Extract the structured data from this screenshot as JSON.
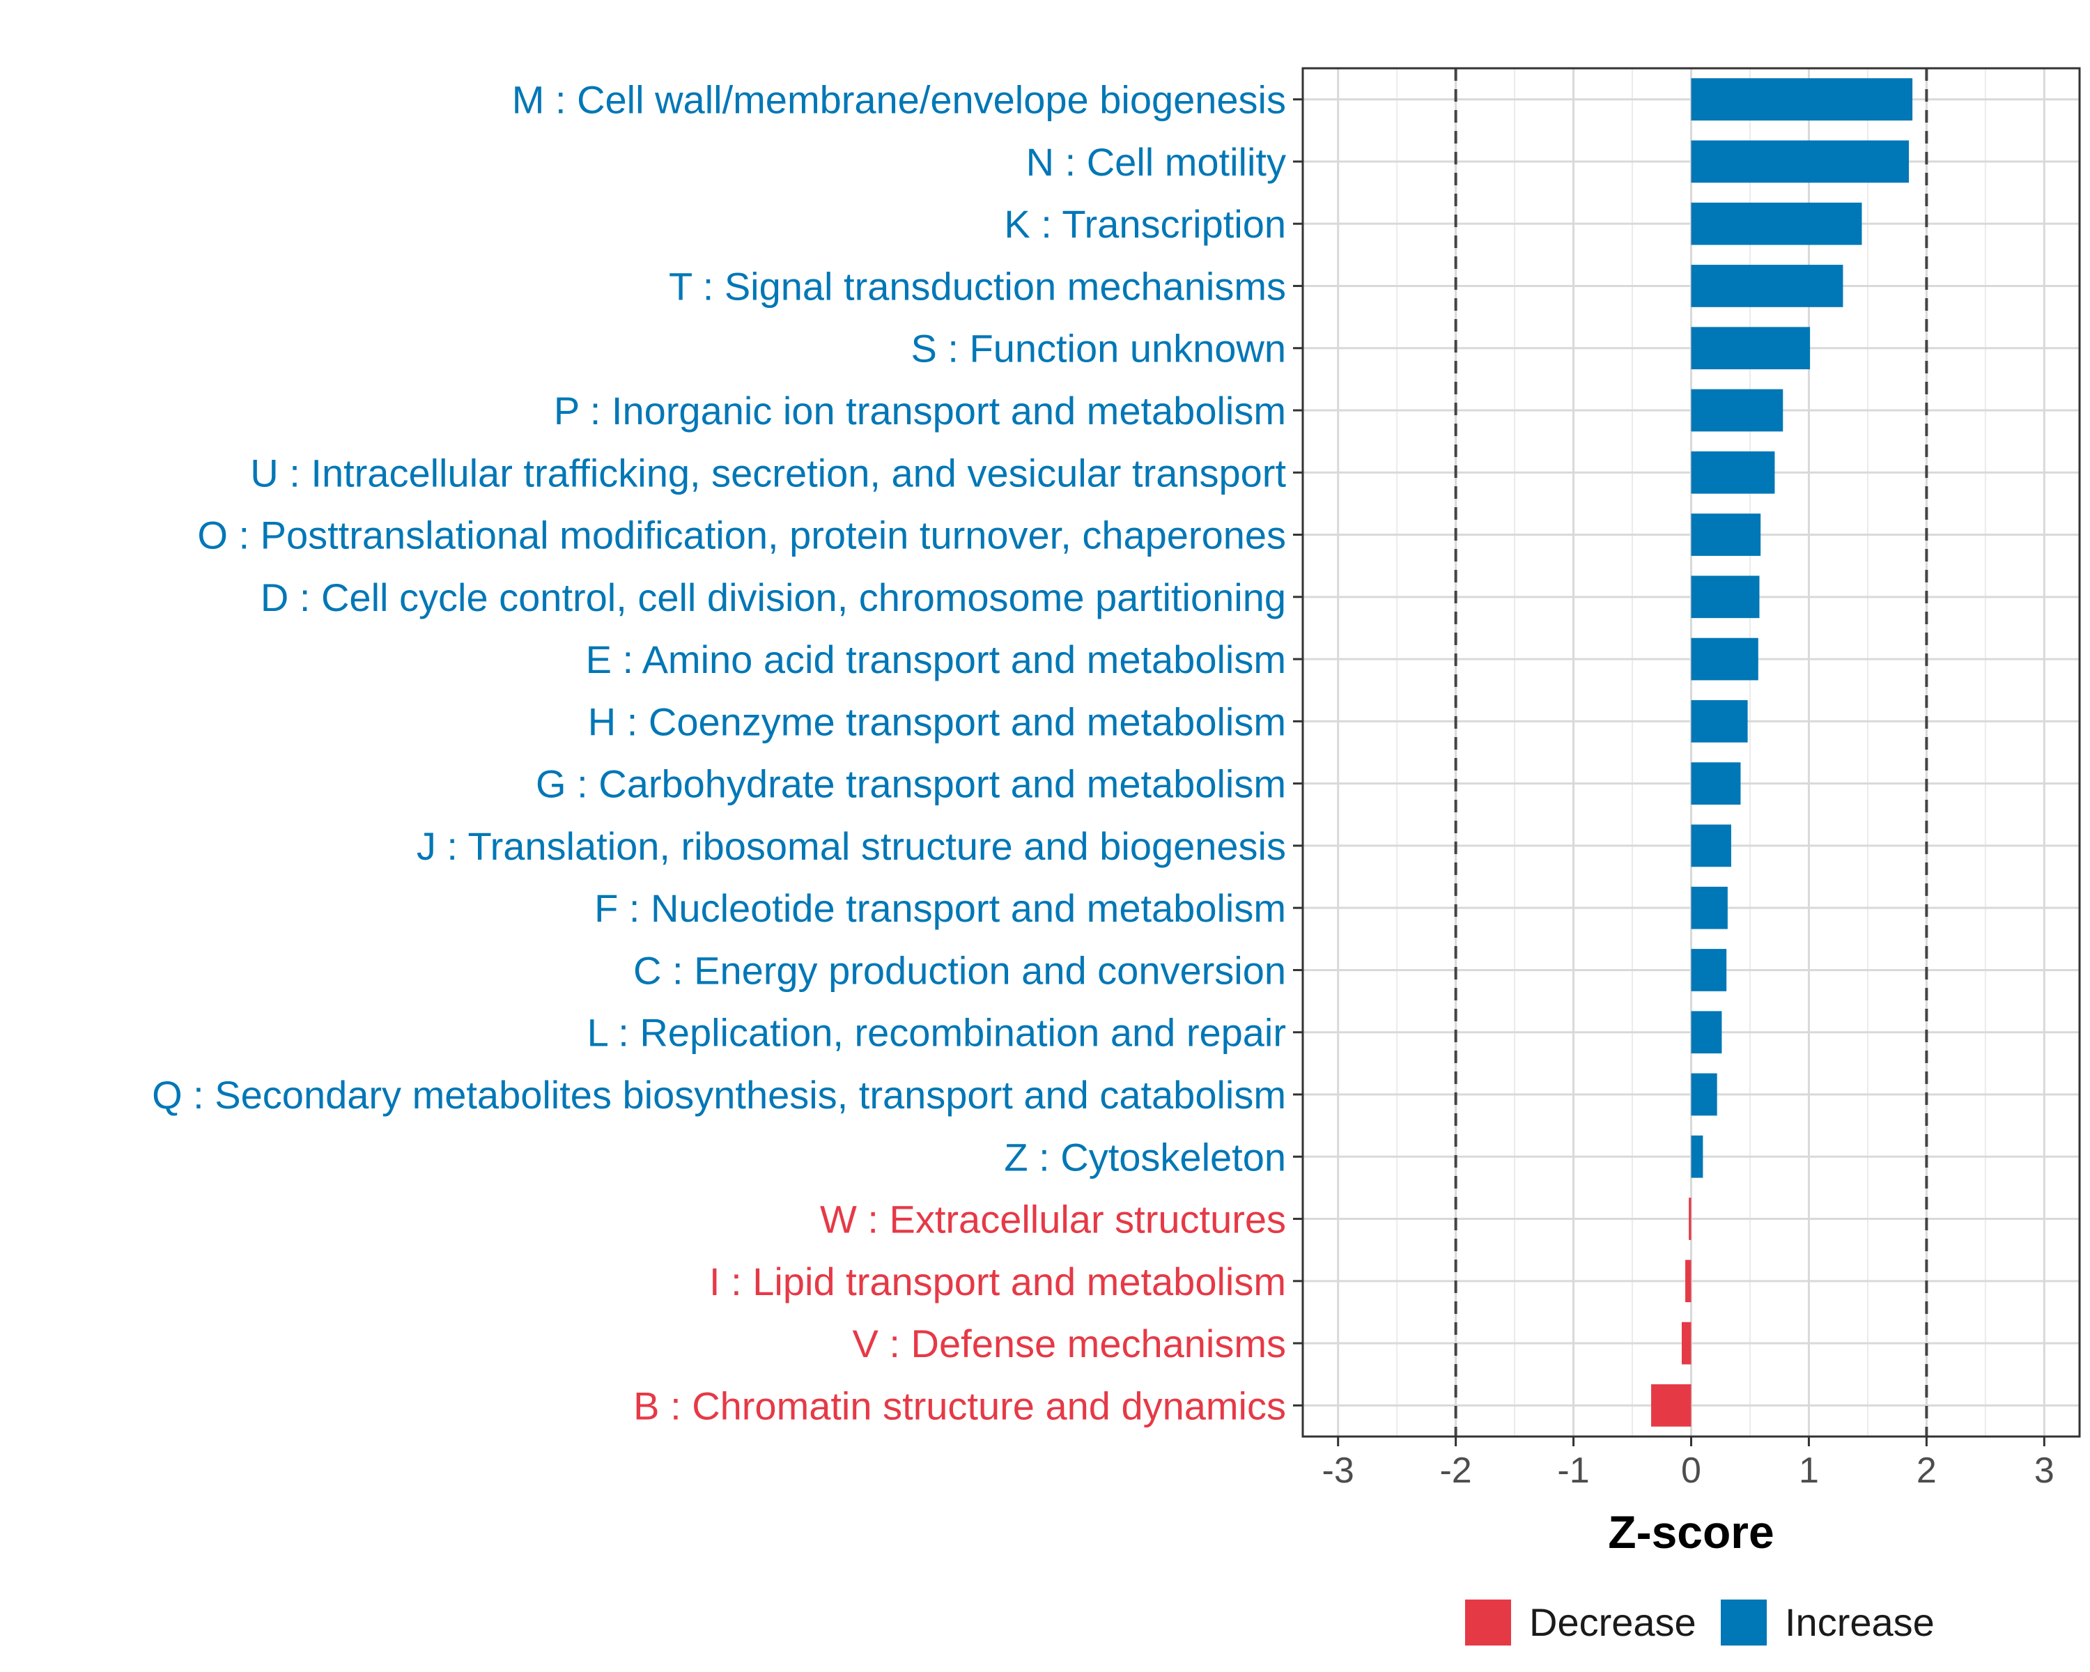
{
  "chart_data": {
    "type": "bar",
    "orientation": "horizontal",
    "title": "",
    "xlabel": "Z-score",
    "ylabel": "",
    "xlim": [
      -3.3,
      3.3
    ],
    "xticks": [
      -3,
      -2,
      -1,
      0,
      1,
      2,
      3
    ],
    "threshold_lines": [
      -2,
      2
    ],
    "grid": true,
    "legend_position": "bottom",
    "colors": {
      "Decrease": "#e63946",
      "Increase": "#0077b6"
    },
    "legend": [
      {
        "key": "Decrease",
        "label": "Decrease"
      },
      {
        "key": "Increase",
        "label": "Increase"
      }
    ],
    "categories": [
      "M : Cell wall/membrane/envelope biogenesis",
      "N : Cell motility",
      "K : Transcription",
      "T : Signal transduction mechanisms",
      "S : Function unknown",
      "P : Inorganic ion transport and metabolism",
      "U : Intracellular trafficking, secretion, and vesicular transport",
      "O : Posttranslational modification, protein turnover, chaperones",
      "D : Cell cycle control, cell division, chromosome partitioning",
      "E : Amino acid transport and metabolism",
      "H : Coenzyme transport and metabolism",
      "G : Carbohydrate transport and metabolism",
      "J : Translation, ribosomal structure and biogenesis",
      "F : Nucleotide transport and metabolism",
      "C : Energy production and conversion",
      "L : Replication, recombination and repair",
      "Q : Secondary metabolites biosynthesis, transport and catabolism",
      "Z : Cytoskeleton",
      "W : Extracellular structures",
      "I : Lipid transport and metabolism",
      "V : Defense mechanisms",
      "B : Chromatin structure and dynamics"
    ],
    "values": [
      1.88,
      1.85,
      1.45,
      1.29,
      1.01,
      0.78,
      0.71,
      0.59,
      0.58,
      0.57,
      0.48,
      0.42,
      0.34,
      0.31,
      0.3,
      0.26,
      0.22,
      0.1,
      -0.02,
      -0.05,
      -0.08,
      -0.34
    ]
  }
}
